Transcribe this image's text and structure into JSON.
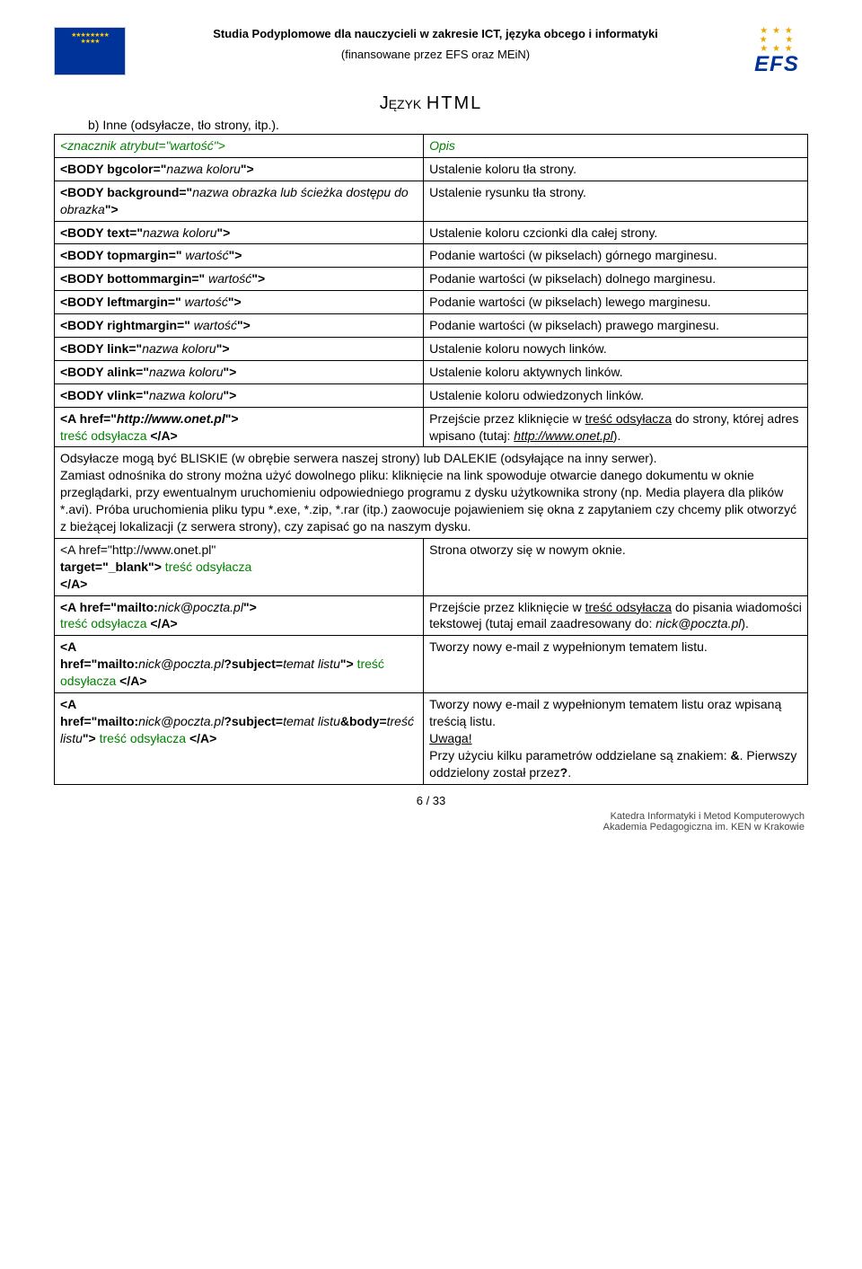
{
  "header": {
    "title": "Studia Podyplomowe dla nauczycieli w zakresie ICT, języka obcego i informatyki",
    "subtitle": "(finansowane przez EFS oraz MEiN)",
    "efs": "EFS"
  },
  "doc_title_left": "Język",
  "doc_title_right": "HTML",
  "section": "b) Inne (odsyłacze, tło strony, itp.).",
  "thead": {
    "left": "<znacznik atrybut=\"wartość\">",
    "right": "Opis"
  },
  "rows": [
    {
      "l": "<BODY bgcolor=\"nazwa koloru\">",
      "l_bold_to": 14,
      "r": "Ustalenie koloru tła strony."
    },
    {
      "l": "<BODY background=\"nazwa obrazka lub ścieżka dostępu do obrazka\">",
      "l_bold_to": 18,
      "r": "Ustalenie rysunku tła strony."
    },
    {
      "l": "<BODY text=\"nazwa koloru\">",
      "l_bold_to": 11,
      "r": "Ustalenie koloru czcionki dla całej strony."
    },
    {
      "l": "<BODY topmargin=\" wartość\">",
      "l_bold_to": 17,
      "r": "Podanie wartości (w pikselach) górnego marginesu."
    },
    {
      "l": "<BODY bottommargin=\" wartość\">",
      "l_bold_to": 20,
      "r": "Podanie wartości (w pikselach) dolnego marginesu."
    },
    {
      "l": "<BODY leftmargin=\" wartość\">",
      "l_bold_to": 18,
      "r": "Podanie wartości (w pikselach) lewego marginesu."
    },
    {
      "l": "<BODY rightmargin=\" wartość\">",
      "l_bold_to": 19,
      "r": "Podanie wartości (w pikselach) prawego marginesu."
    },
    {
      "l": "<BODY link=\"nazwa koloru\">",
      "l_bold_to": 11,
      "r": "Ustalenie koloru nowych linków."
    },
    {
      "l": "<BODY alink=\"nazwa koloru\">",
      "l_bold_to": 12,
      "r": "Ustalenie koloru aktywnych linków."
    },
    {
      "l": "<BODY vlink=\"nazwa koloru\">",
      "l_bold_to": 12,
      "r": "Ustalenie koloru odwiedzonych linków."
    }
  ],
  "href_row": {
    "l1": "<A href=\"",
    "l_url": "http://www.onet.pl",
    "l2": "\">",
    "l3": "treść odsyłacza ",
    "l4": "</A>",
    "r1": "Przejście przez kliknięcie w ",
    "r_link1": "treść odsyłacza",
    "r2": " do strony, której adres wpisano (tutaj: ",
    "r_url": "http://www.onet.pl",
    "r3": ")."
  },
  "para": "Odsyłacze mogą być BLISKIE (w obrębie serwera naszej strony) lub DALEKIE (odsyłające na inny serwer).\nZamiast odnośnika do strony można użyć dowolnego pliku: kliknięcie na link spowoduje otwarcie danego dokumentu w oknie przeglądarki, przy ewentualnym uruchomieniu odpowiedniego programu z dysku użytkownika strony (np. Media playera dla plików *.avi). Próba uruchomienia pliku typu *.exe, *.zip, *.rar (itp.) zaowocuje pojawieniem się okna z zapytaniem czy chcemy plik otworzyć z bieżącej lokalizacji (z serwera strony), czy zapisać go na naszym dysku.",
  "row_target": {
    "l1": "<A href=\"http://www.onet.pl\"",
    "l2": "target=\"_blank\"> ",
    "l_green": "treść odsyłacza",
    "l3": "</A>",
    "r": "Strona otworzy się w nowym oknie."
  },
  "row_mailto1": {
    "l1": "<A href=\"mailto:",
    "l_it": "nick@poczta.pl",
    "l2": "\">",
    "l_green": "treść odsyłacza ",
    "l3": "</A>",
    "r1": "Przejście przez kliknięcie w ",
    "r_link": "treść odsyłacza",
    "r2": " do pisania wiadomości tekstowej (tutaj email zaadresowany do: ",
    "r_it": "nick@poczta.pl",
    "r3": ")."
  },
  "row_mailto2": {
    "l1": "<A",
    "l2": "href=\"mailto:",
    "l_it1": "nick@poczta.pl",
    "l3": "?subject=",
    "l_it2": "temat listu",
    "l4": "\"> ",
    "l_green": "treść odsyłacza ",
    "l5": "</A>",
    "r": "Tworzy nowy e-mail z wypełnionym tematem listu."
  },
  "row_mailto3": {
    "l1": "<A",
    "l2": "href=\"mailto:",
    "l_it1": "nick@poczta.pl",
    "l3": "?subject=",
    "l_it2": "temat listu",
    "l_amp": "&",
    "l4": "body=",
    "l_it3": "treść listu",
    "l5": "\"> ",
    "l_green": "treść odsyłacza ",
    "l6": "</A>",
    "r1": "Tworzy nowy e-mail z wypełnionym tematem listu oraz wpisaną treścią listu.",
    "r_uw": "Uwaga!",
    "r2": "Przy użyciu kilku parametrów oddzielane są znakiem: ",
    "r_amp": "&",
    "r3": ". Pierwszy oddzielony został przez",
    "r_q": "?",
    "r4": "."
  },
  "page_num": "6 / 33",
  "footer": {
    "line1": "Katedra Informatyki i Metod Komputerowych",
    "line2": "Akademia Pedagogiczna im. KEN w Krakowie"
  }
}
